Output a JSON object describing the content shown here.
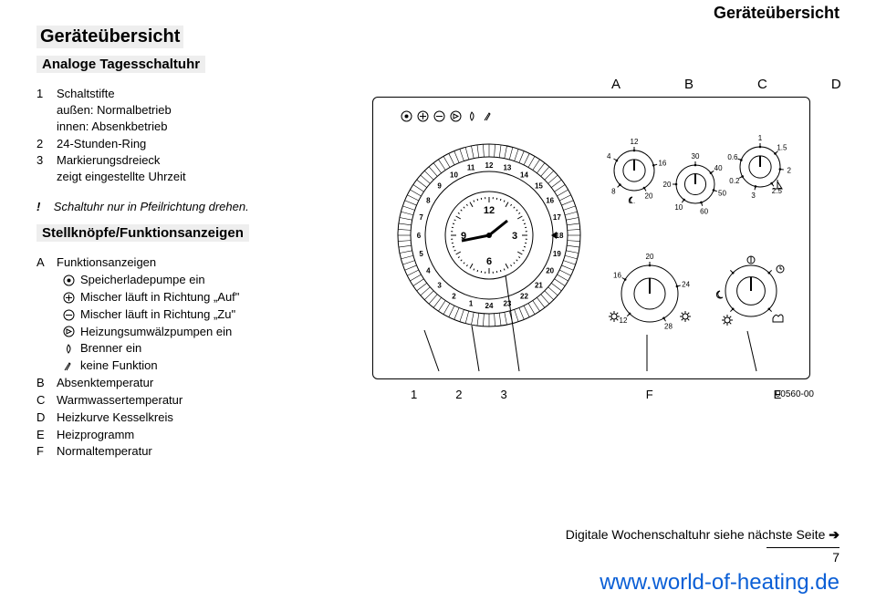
{
  "header": {
    "right": "Geräteübersicht",
    "left": "Geräteübersicht",
    "sub": "Analoge Tagesschaltuhr"
  },
  "paramList": {
    "items": [
      {
        "n": "1",
        "lines": [
          "Schaltstifte",
          "außen: Normalbetrieb",
          "innen: Absenkbetrieb"
        ]
      },
      {
        "n": "2",
        "lines": [
          "24-Stunden-Ring"
        ]
      },
      {
        "n": "3",
        "lines": [
          "Markierungsdreieck",
          "zeigt eingestellte Uhrzeit"
        ]
      }
    ]
  },
  "warn": {
    "excl": "!",
    "text": "Schaltuhr nur in Pfeilrichtung drehen."
  },
  "stellHeader": "Stellknöpfe/Funktionsanzeigen",
  "funcA": {
    "label": "A",
    "title": "Funktionsanzeigen",
    "items": [
      {
        "icon": "pump",
        "text": "Speicherladepumpe ein"
      },
      {
        "icon": "plus",
        "text": "Mischer läuft in Richtung „Auf\""
      },
      {
        "icon": "minus",
        "text": "Mischer läuft in Richtung „Zu\""
      },
      {
        "icon": "circ",
        "text": "Heizungsumwälzpumpen ein"
      },
      {
        "icon": "flame",
        "text": "Brenner ein"
      },
      {
        "icon": "blank",
        "text": "keine Funktion"
      }
    ]
  },
  "otherLabels": [
    {
      "l": "B",
      "t": "Absenktemperatur"
    },
    {
      "l": "C",
      "t": "Warmwassertemperatur"
    },
    {
      "l": "D",
      "t": "Heizkurve Kesselkreis"
    },
    {
      "l": "E",
      "t": "Heizprogramm"
    },
    {
      "l": "F",
      "t": "Normaltemperatur"
    }
  ],
  "topRow": [
    "A",
    "B",
    "C",
    "D"
  ],
  "callRow": [
    "1",
    "2",
    "3",
    "F",
    "E"
  ],
  "partNo": "00560-00",
  "footerNote": "Digitale Wochenschaltuhr siehe nächste Seite",
  "arrow": "➔",
  "pageNum": "7",
  "url": "www.world-of-heating.de",
  "dial": {
    "outerNumbers": [
      "12",
      "13",
      "14",
      "15",
      "16",
      "17",
      "18",
      "19",
      "20",
      "21",
      "22",
      "23",
      "24",
      "1",
      "2",
      "3",
      "4",
      "5",
      "6",
      "7",
      "8",
      "9",
      "10",
      "11"
    ],
    "innerNumbers": [
      "12",
      "3",
      "6",
      "9"
    ]
  },
  "knobB": {
    "ticks": [
      "12",
      "16",
      "20",
      "8",
      "4"
    ],
    "center": ""
  },
  "knobC": {
    "ticks": [
      "30",
      "40",
      "50",
      "60",
      "10",
      "20"
    ]
  },
  "knobD": {
    "ticks": [
      "1",
      "1.5",
      "2",
      "2.5",
      "3",
      "0.2",
      "0.6"
    ]
  },
  "knobF": {
    "ticks": [
      "20",
      "24",
      "28",
      "12",
      "16"
    ]
  },
  "knobE": {
    "ticks": [
      "",
      "",
      "",
      ""
    ]
  },
  "colors": {
    "line": "#000000",
    "bg": "#ffffff",
    "grey": "#eeeeee",
    "link": "#0b5fd6"
  }
}
